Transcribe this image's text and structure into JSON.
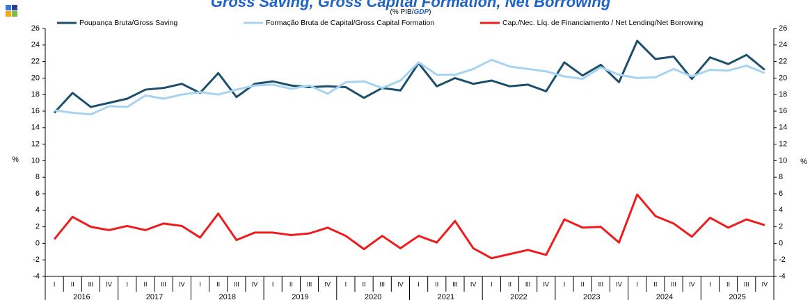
{
  "chart_data": {
    "type": "line",
    "title": "Gross Saving, Gross Capital Formation, Net Borrowing",
    "subtitle_parts": [
      "(% PIB/",
      "GDP",
      ")"
    ],
    "ylabel": "%",
    "y2label": "%",
    "categories": [
      "I",
      "II",
      "III",
      "IV",
      "I",
      "II",
      "III",
      "IV",
      "I",
      "II",
      "III",
      "IV",
      "I",
      "II",
      "III",
      "IV",
      "I",
      "II",
      "III",
      "IV",
      "I",
      "II",
      "III",
      "IV",
      "I",
      "II",
      "III",
      "IV",
      "I",
      "II",
      "III",
      "IV",
      "I",
      "II",
      "III",
      "IV",
      "I",
      "II",
      "III",
      "IV"
    ],
    "years": [
      "2016",
      "2017",
      "2018",
      "2019",
      "2020",
      "2021",
      "2022",
      "2023",
      "2024",
      "2025"
    ],
    "ylim": [
      -4,
      26
    ],
    "yticks": [
      -4,
      -2,
      0,
      2,
      4,
      6,
      8,
      10,
      12,
      14,
      16,
      18,
      20,
      22,
      24,
      26
    ],
    "y2lim": [
      -4,
      26
    ],
    "y2ticks": [
      -4,
      -2,
      0,
      2,
      4,
      6,
      8,
      10,
      12,
      14,
      16,
      18,
      20,
      22,
      24,
      26
    ],
    "legend": "top",
    "series": [
      {
        "name": "Poupança Bruta/Gross Saving",
        "color": "#1b4f6b",
        "values": [
          15.8,
          18.2,
          16.5,
          17.0,
          17.5,
          18.6,
          18.8,
          19.3,
          18.2,
          20.6,
          17.7,
          19.3,
          19.6,
          19.1,
          18.9,
          19.0,
          18.9,
          17.6,
          18.8,
          18.5,
          21.8,
          19.0,
          20.0,
          19.3,
          19.7,
          19.0,
          19.2,
          18.4,
          21.9,
          20.3,
          21.6,
          19.5,
          24.5,
          22.3,
          22.6,
          19.9,
          22.5,
          21.7,
          22.8,
          21.0
        ]
      },
      {
        "name": "Formação Bruta de Capital/Gross Capital Formation",
        "color": "#a6d3f2",
        "values": [
          16.1,
          15.8,
          15.6,
          16.6,
          16.5,
          17.9,
          17.5,
          18.0,
          18.3,
          18.0,
          18.6,
          19.1,
          19.2,
          18.7,
          19.1,
          18.1,
          19.5,
          19.6,
          18.8,
          19.7,
          21.9,
          20.4,
          20.4,
          21.1,
          22.2,
          21.4,
          21.1,
          20.8,
          20.2,
          19.9,
          21.3,
          20.4,
          20.0,
          20.1,
          21.1,
          20.2,
          21.0,
          20.9,
          21.5,
          20.6
        ]
      },
      {
        "name": "Cap./Nec. Líq. de Financiamento / Net Lending/Net Borrowing",
        "color": "#ee1c1c",
        "values": [
          0.5,
          3.2,
          2.0,
          1.6,
          2.1,
          1.6,
          2.4,
          2.1,
          0.7,
          3.6,
          0.4,
          1.3,
          1.3,
          1.0,
          1.2,
          1.9,
          0.9,
          -0.7,
          0.9,
          -0.6,
          0.9,
          0.1,
          2.7,
          -0.6,
          -1.8,
          -1.3,
          -0.8,
          -1.4,
          2.9,
          1.9,
          2.0,
          0.1,
          5.9,
          3.3,
          2.4,
          0.8,
          3.1,
          1.9,
          2.9,
          2.2
        ]
      }
    ]
  }
}
